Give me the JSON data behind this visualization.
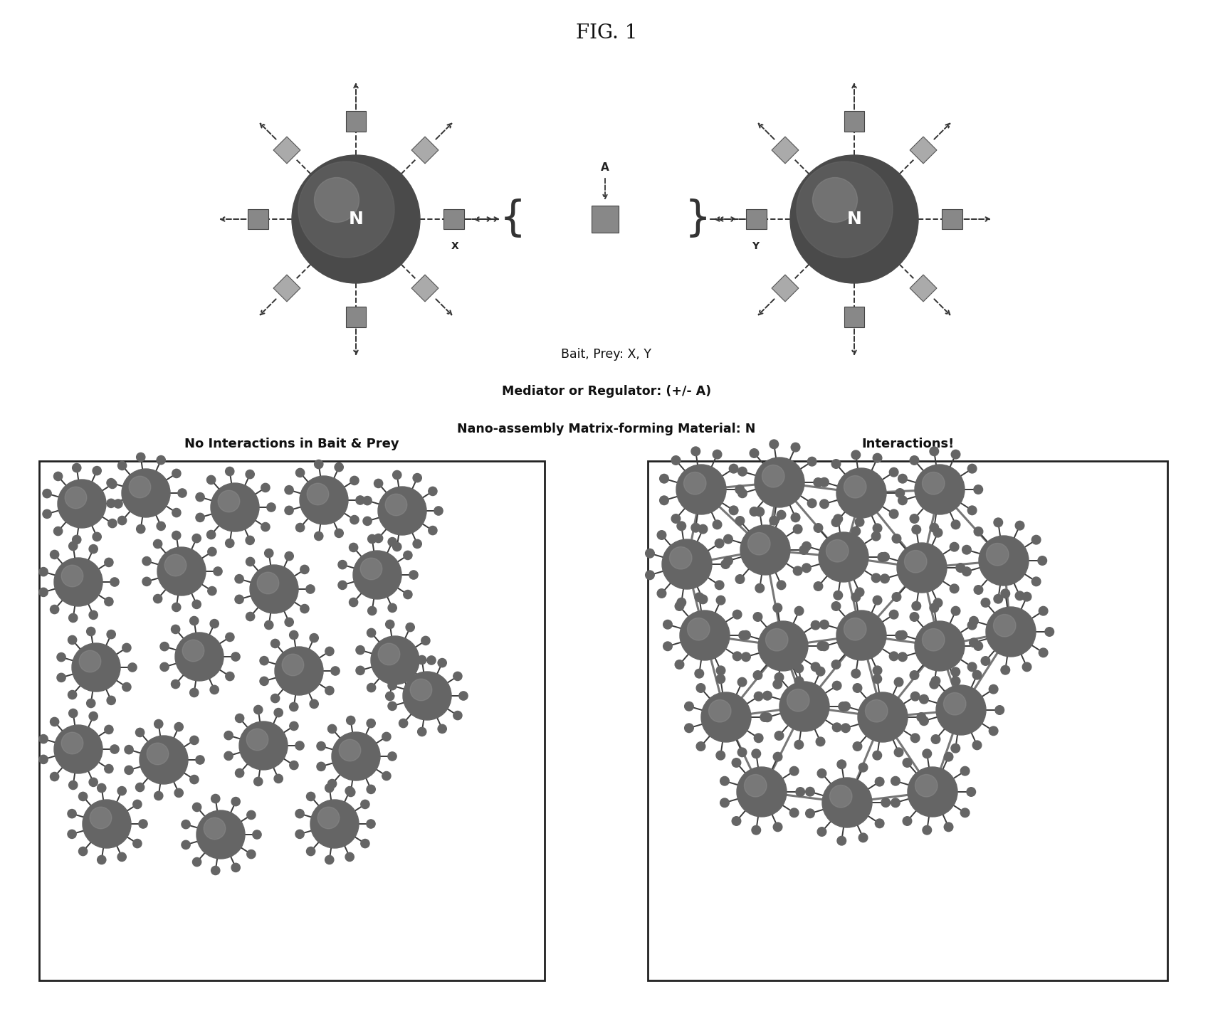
{
  "title": "FIG. 1",
  "title_fontsize": 20,
  "bg_color": "#ffffff",
  "sphere_dark": "#4a4a4a",
  "sphere_mid": "#6a6a6a",
  "sphere_light": "#8a8a8a",
  "square_color": "#888888",
  "diamond_color": "#aaaaaa",
  "arrow_color": "#333333",
  "label_N_fontsize": 18,
  "legend_line1": "Bait, Prey: X, Y",
  "legend_line2": "Mediator or Regulator: (+/- A)",
  "legend_line3": "Nano-assembly Matrix-forming Material: N",
  "no_interaction_title": "No Interactions in Bait & Prey",
  "interaction_title": "Interactions!",
  "nano_body_color": "#656565",
  "nano_highlight": "#909090",
  "nano_spike_color": "#3a3a3a",
  "connection_color": "#555555",
  "box_edge": "#222222"
}
